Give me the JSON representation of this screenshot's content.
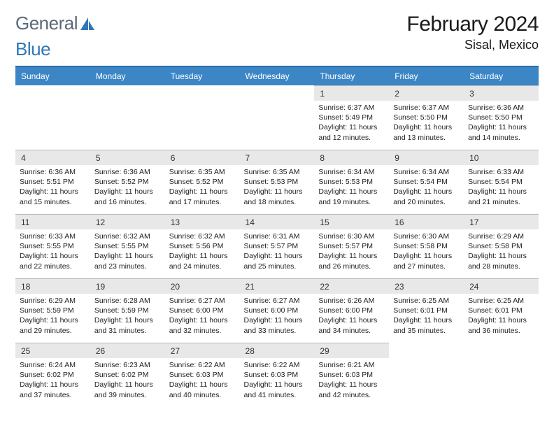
{
  "brand": {
    "part1": "General",
    "part2": "Blue"
  },
  "title": "February 2024",
  "location": "Sisal, Mexico",
  "colors": {
    "header_bg": "#3d86c6",
    "header_border": "#2a6ca8",
    "daynum_bg": "#e8e8e8",
    "daynum_border": "#b9b9b9",
    "text": "#1a1a1a",
    "logo_gray": "#5a6a78",
    "logo_blue": "#2f77b6",
    "background": "#ffffff",
    "details_text": "#222222"
  },
  "typography": {
    "title_fontsize": 30,
    "location_fontsize": 18,
    "dayheader_fontsize": 12,
    "daynum_fontsize": 12,
    "details_fontsize": 10.5
  },
  "day_headers": [
    "Sunday",
    "Monday",
    "Tuesday",
    "Wednesday",
    "Thursday",
    "Friday",
    "Saturday"
  ],
  "weeks": [
    [
      null,
      null,
      null,
      null,
      {
        "n": "1",
        "sunrise": "Sunrise: 6:37 AM",
        "sunset": "Sunset: 5:49 PM",
        "daylight": "Daylight: 11 hours and 12 minutes."
      },
      {
        "n": "2",
        "sunrise": "Sunrise: 6:37 AM",
        "sunset": "Sunset: 5:50 PM",
        "daylight": "Daylight: 11 hours and 13 minutes."
      },
      {
        "n": "3",
        "sunrise": "Sunrise: 6:36 AM",
        "sunset": "Sunset: 5:50 PM",
        "daylight": "Daylight: 11 hours and 14 minutes."
      }
    ],
    [
      {
        "n": "4",
        "sunrise": "Sunrise: 6:36 AM",
        "sunset": "Sunset: 5:51 PM",
        "daylight": "Daylight: 11 hours and 15 minutes."
      },
      {
        "n": "5",
        "sunrise": "Sunrise: 6:36 AM",
        "sunset": "Sunset: 5:52 PM",
        "daylight": "Daylight: 11 hours and 16 minutes."
      },
      {
        "n": "6",
        "sunrise": "Sunrise: 6:35 AM",
        "sunset": "Sunset: 5:52 PM",
        "daylight": "Daylight: 11 hours and 17 minutes."
      },
      {
        "n": "7",
        "sunrise": "Sunrise: 6:35 AM",
        "sunset": "Sunset: 5:53 PM",
        "daylight": "Daylight: 11 hours and 18 minutes."
      },
      {
        "n": "8",
        "sunrise": "Sunrise: 6:34 AM",
        "sunset": "Sunset: 5:53 PM",
        "daylight": "Daylight: 11 hours and 19 minutes."
      },
      {
        "n": "9",
        "sunrise": "Sunrise: 6:34 AM",
        "sunset": "Sunset: 5:54 PM",
        "daylight": "Daylight: 11 hours and 20 minutes."
      },
      {
        "n": "10",
        "sunrise": "Sunrise: 6:33 AM",
        "sunset": "Sunset: 5:54 PM",
        "daylight": "Daylight: 11 hours and 21 minutes."
      }
    ],
    [
      {
        "n": "11",
        "sunrise": "Sunrise: 6:33 AM",
        "sunset": "Sunset: 5:55 PM",
        "daylight": "Daylight: 11 hours and 22 minutes."
      },
      {
        "n": "12",
        "sunrise": "Sunrise: 6:32 AM",
        "sunset": "Sunset: 5:55 PM",
        "daylight": "Daylight: 11 hours and 23 minutes."
      },
      {
        "n": "13",
        "sunrise": "Sunrise: 6:32 AM",
        "sunset": "Sunset: 5:56 PM",
        "daylight": "Daylight: 11 hours and 24 minutes."
      },
      {
        "n": "14",
        "sunrise": "Sunrise: 6:31 AM",
        "sunset": "Sunset: 5:57 PM",
        "daylight": "Daylight: 11 hours and 25 minutes."
      },
      {
        "n": "15",
        "sunrise": "Sunrise: 6:30 AM",
        "sunset": "Sunset: 5:57 PM",
        "daylight": "Daylight: 11 hours and 26 minutes."
      },
      {
        "n": "16",
        "sunrise": "Sunrise: 6:30 AM",
        "sunset": "Sunset: 5:58 PM",
        "daylight": "Daylight: 11 hours and 27 minutes."
      },
      {
        "n": "17",
        "sunrise": "Sunrise: 6:29 AM",
        "sunset": "Sunset: 5:58 PM",
        "daylight": "Daylight: 11 hours and 28 minutes."
      }
    ],
    [
      {
        "n": "18",
        "sunrise": "Sunrise: 6:29 AM",
        "sunset": "Sunset: 5:59 PM",
        "daylight": "Daylight: 11 hours and 29 minutes."
      },
      {
        "n": "19",
        "sunrise": "Sunrise: 6:28 AM",
        "sunset": "Sunset: 5:59 PM",
        "daylight": "Daylight: 11 hours and 31 minutes."
      },
      {
        "n": "20",
        "sunrise": "Sunrise: 6:27 AM",
        "sunset": "Sunset: 6:00 PM",
        "daylight": "Daylight: 11 hours and 32 minutes."
      },
      {
        "n": "21",
        "sunrise": "Sunrise: 6:27 AM",
        "sunset": "Sunset: 6:00 PM",
        "daylight": "Daylight: 11 hours and 33 minutes."
      },
      {
        "n": "22",
        "sunrise": "Sunrise: 6:26 AM",
        "sunset": "Sunset: 6:00 PM",
        "daylight": "Daylight: 11 hours and 34 minutes."
      },
      {
        "n": "23",
        "sunrise": "Sunrise: 6:25 AM",
        "sunset": "Sunset: 6:01 PM",
        "daylight": "Daylight: 11 hours and 35 minutes."
      },
      {
        "n": "24",
        "sunrise": "Sunrise: 6:25 AM",
        "sunset": "Sunset: 6:01 PM",
        "daylight": "Daylight: 11 hours and 36 minutes."
      }
    ],
    [
      {
        "n": "25",
        "sunrise": "Sunrise: 6:24 AM",
        "sunset": "Sunset: 6:02 PM",
        "daylight": "Daylight: 11 hours and 37 minutes."
      },
      {
        "n": "26",
        "sunrise": "Sunrise: 6:23 AM",
        "sunset": "Sunset: 6:02 PM",
        "daylight": "Daylight: 11 hours and 39 minutes."
      },
      {
        "n": "27",
        "sunrise": "Sunrise: 6:22 AM",
        "sunset": "Sunset: 6:03 PM",
        "daylight": "Daylight: 11 hours and 40 minutes."
      },
      {
        "n": "28",
        "sunrise": "Sunrise: 6:22 AM",
        "sunset": "Sunset: 6:03 PM",
        "daylight": "Daylight: 11 hours and 41 minutes."
      },
      {
        "n": "29",
        "sunrise": "Sunrise: 6:21 AM",
        "sunset": "Sunset: 6:03 PM",
        "daylight": "Daylight: 11 hours and 42 minutes."
      },
      null,
      null
    ]
  ]
}
